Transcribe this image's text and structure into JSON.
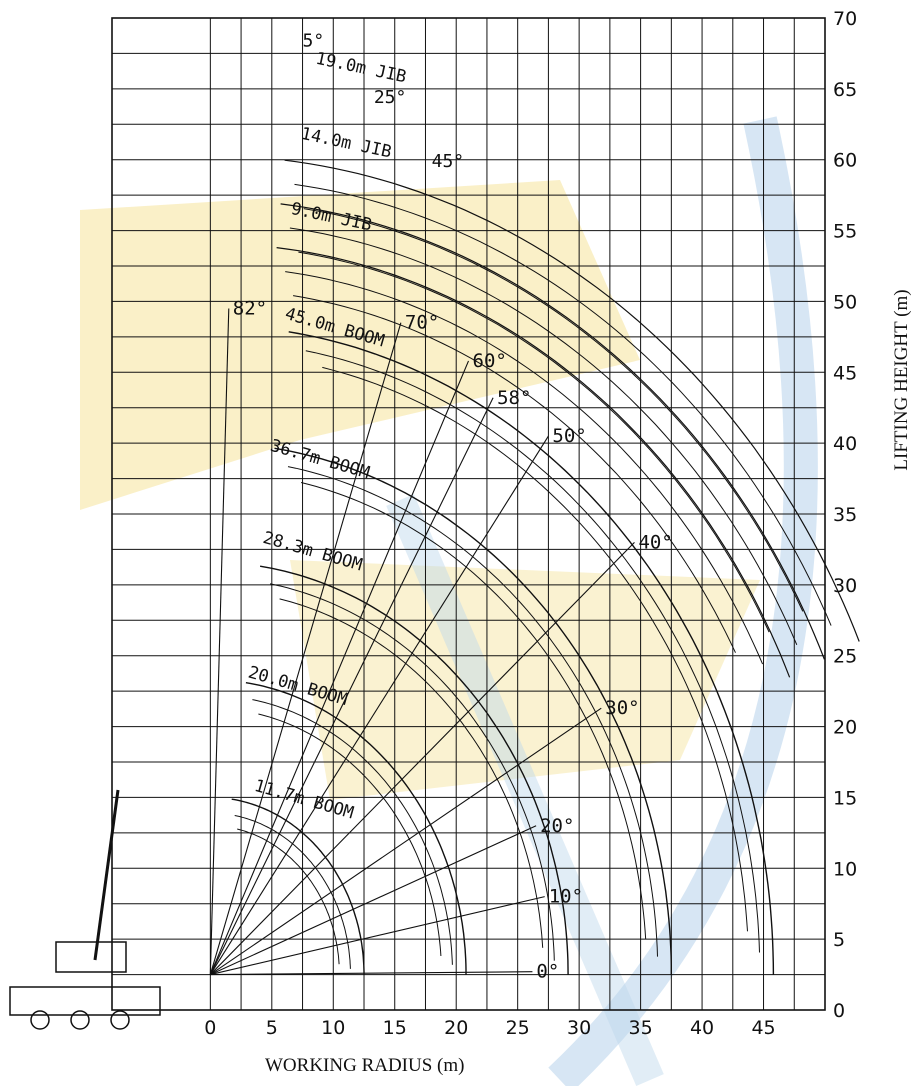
{
  "chart_data": {
    "type": "line",
    "title": "",
    "xlabel": "WORKING RADIUS (m)",
    "ylabel": "LIFTING HEIGHT (m)",
    "xlim": [
      -8,
      50
    ],
    "ylim": [
      0,
      70
    ],
    "grid": true,
    "x_ticks": [
      0,
      5,
      10,
      15,
      20,
      25,
      30,
      35,
      40,
      45
    ],
    "y_ticks": [
      0,
      5,
      10,
      15,
      20,
      25,
      30,
      35,
      40,
      45,
      50,
      55,
      60,
      65,
      70
    ],
    "colors": {
      "line": "#111111",
      "grid": "#111111",
      "watermark_yellow": "#f5e39a",
      "watermark_blue": "#bcd6ec"
    },
    "booms": [
      {
        "label": "11.7m BOOM",
        "length": 11.7
      },
      {
        "label": "20.0m BOOM",
        "length": 20.0
      },
      {
        "label": "28.3m BOOM",
        "length": 28.3
      },
      {
        "label": "36.7m BOOM",
        "length": 36.7
      },
      {
        "label": "45.0m BOOM",
        "length": 45.0
      }
    ],
    "jibs": [
      {
        "label": "9.0m JIB",
        "length": 9.0
      },
      {
        "label": "14.0m JIB",
        "length": 14.0
      },
      {
        "label": "19.0m JIB",
        "length": 19.0
      }
    ],
    "boom_angles": [
      {
        "label": "0°",
        "x": 26.2,
        "y": 2.7
      },
      {
        "label": "10°",
        "x": 27.2,
        "y": 8.0
      },
      {
        "label": "20°",
        "x": 26.5,
        "y": 13.0
      },
      {
        "label": "30°",
        "x": 31.8,
        "y": 21.3
      },
      {
        "label": "40°",
        "x": 34.5,
        "y": 33.0
      },
      {
        "label": "50°",
        "x": 27.5,
        "y": 40.5
      },
      {
        "label": "58°",
        "x": 23.0,
        "y": 43.2
      },
      {
        "label": "60°",
        "x": 21.0,
        "y": 45.8
      },
      {
        "label": "70°",
        "x": 15.5,
        "y": 48.5
      },
      {
        "label": "82°",
        "x": 1.5,
        "y": 49.5
      }
    ],
    "jib_offsets": [
      {
        "label": "5°",
        "x": 7.5,
        "y": 68.0
      },
      {
        "label": "25°",
        "x": 13.3,
        "y": 64.0
      },
      {
        "label": "45°",
        "x": 18.0,
        "y": 59.5
      }
    ]
  }
}
